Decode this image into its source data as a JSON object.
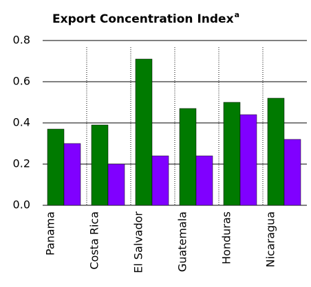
{
  "chart_data": {
    "type": "bar",
    "title": "Export Concentration Index",
    "title_superscript": "a",
    "categories": [
      "Panama",
      "Costa Rica",
      "El Salvador",
      "Guatemala",
      "Honduras",
      "Nicaragua"
    ],
    "series": [
      {
        "color": "#007a00",
        "values": [
          0.37,
          0.39,
          0.71,
          0.47,
          0.5,
          0.52
        ]
      },
      {
        "color": "#8000ff",
        "values": [
          0.3,
          0.2,
          0.24,
          0.24,
          0.44,
          0.32
        ]
      }
    ],
    "ylim": [
      0,
      0.8
    ],
    "yticks": [
      {
        "value": 0,
        "label": "0.0"
      },
      0.2,
      0.4,
      0.6,
      0.8
    ],
    "grid": true
  }
}
